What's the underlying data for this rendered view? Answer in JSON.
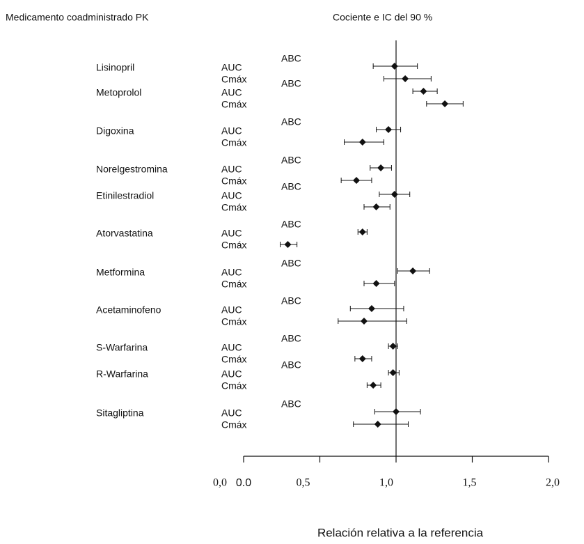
{
  "chart_data": {
    "type": "forest",
    "title": "Medicamento coadministrado PK",
    "subtitle": "Cociente e IC del 90 %",
    "xlabel": "Relación relativa a la referencia",
    "origin_label": "0.0",
    "xlim": [
      0,
      2
    ],
    "xticks": [
      {
        "value": 0,
        "label": "0,0"
      },
      {
        "value": 0.5,
        "label": "0,5"
      },
      {
        "value": 1,
        "label": "1,0"
      },
      {
        "value": 1.5,
        "label": "1,5"
      },
      {
        "value": 2,
        "label": "2,0"
      }
    ],
    "reference_line": 1,
    "color": "#111111",
    "groups": [
      {
        "name": "Lisinopril",
        "annotation": "ABC",
        "rows": [
          {
            "label": "AUC",
            "value": 0.99,
            "low": 0.85,
            "high": 1.14
          },
          {
            "label": "Cmáx",
            "value": 1.06,
            "low": 0.92,
            "high": 1.23
          }
        ]
      },
      {
        "name": "Metoprolol",
        "annotation": "ABC",
        "rows": [
          {
            "label": "AUC",
            "value": 1.18,
            "low": 1.11,
            "high": 1.27
          },
          {
            "label": "Cmáx",
            "value": 1.32,
            "low": 1.2,
            "high": 1.44
          }
        ]
      },
      {
        "name": "Digoxina",
        "annotation": "ABC",
        "rows": [
          {
            "label": "AUC",
            "value": 0.95,
            "low": 0.87,
            "high": 1.03
          },
          {
            "label": "Cmáx",
            "value": 0.78,
            "low": 0.66,
            "high": 0.92
          }
        ]
      },
      {
        "name": "Norelgestromina",
        "annotation": "ABC",
        "rows": [
          {
            "label": "AUC",
            "value": 0.9,
            "low": 0.83,
            "high": 0.97
          },
          {
            "label": "Cmáx",
            "value": 0.74,
            "low": 0.64,
            "high": 0.84
          }
        ]
      },
      {
        "name": "Etinilestradiol",
        "annotation": "ABC",
        "rows": [
          {
            "label": "AUC",
            "value": 0.99,
            "low": 0.89,
            "high": 1.09
          },
          {
            "label": "Cmáx",
            "value": 0.87,
            "low": 0.79,
            "high": 0.96
          }
        ]
      },
      {
        "name": "Atorvastatina",
        "annotation": "ABC",
        "rows": [
          {
            "label": "AUC",
            "value": 0.78,
            "low": 0.75,
            "high": 0.81
          },
          {
            "label": "Cmáx",
            "value": 0.29,
            "low": 0.24,
            "high": 0.35
          }
        ]
      },
      {
        "name": "Metformina",
        "annotation": "ABC",
        "rows": [
          {
            "label": "AUC",
            "value": 1.11,
            "low": 1.01,
            "high": 1.22
          },
          {
            "label": "Cmáx",
            "value": 0.87,
            "low": 0.79,
            "high": 0.99
          }
        ]
      },
      {
        "name": "Acetaminofeno",
        "annotation": "ABC",
        "rows": [
          {
            "label": "AUC",
            "value": 0.84,
            "low": 0.7,
            "high": 1.05
          },
          {
            "label": "Cmáx",
            "value": 0.79,
            "low": 0.62,
            "high": 1.07
          }
        ]
      },
      {
        "name": "S-Warfarina",
        "annotation": "ABC",
        "rows": [
          {
            "label": "AUC",
            "value": 0.98,
            "low": 0.95,
            "high": 1.01
          },
          {
            "label": "Cmáx",
            "value": 0.78,
            "low": 0.73,
            "high": 0.84
          }
        ]
      },
      {
        "name": "R-Warfarina",
        "annotation": "ABC",
        "rows": [
          {
            "label": "AUC",
            "value": 0.98,
            "low": 0.95,
            "high": 1.02
          },
          {
            "label": "Cmáx",
            "value": 0.85,
            "low": 0.81,
            "high": 0.9
          }
        ]
      },
      {
        "name": "Sitagliptina",
        "annotation": "ABC",
        "rows": [
          {
            "label": "AUC",
            "value": 1.0,
            "low": 0.86,
            "high": 1.16
          },
          {
            "label": "Cmáx",
            "value": 0.88,
            "low": 0.72,
            "high": 1.08
          }
        ]
      }
    ]
  }
}
